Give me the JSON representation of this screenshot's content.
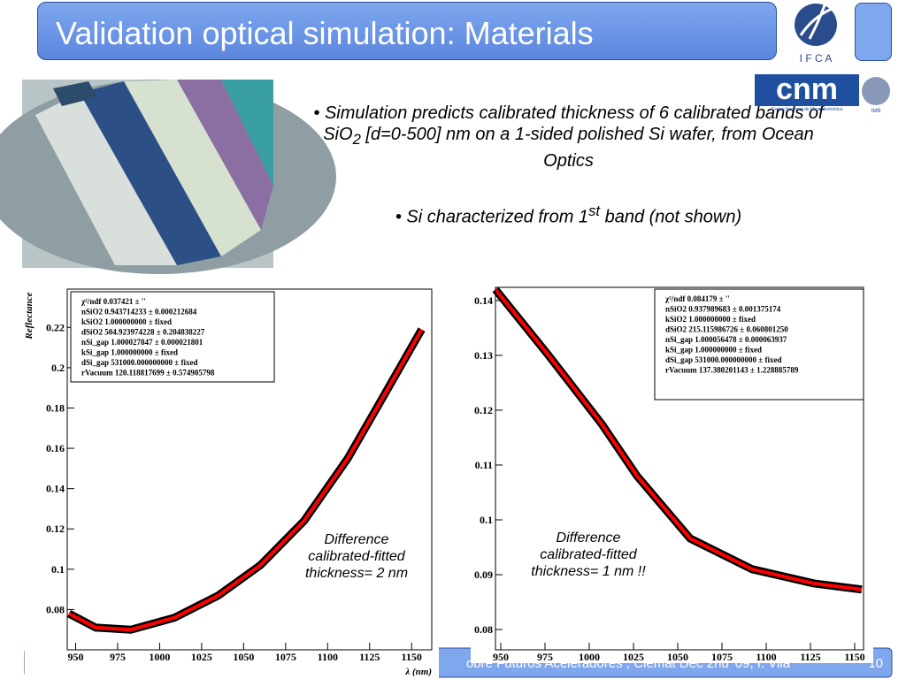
{
  "header": {
    "title": "Validation optical simulation: Materials",
    "logo_ifca": "I F C A",
    "logo_cnm": "cnm",
    "logo_cnm_sub": "Centro Nacional de Microelectrónica",
    "logo_imb": "IMB"
  },
  "bullets": [
    {
      "parts": [
        "Simulation predicts calibrated thickness of 6 calibrated bands of SiO",
        "2",
        " [d=0-500] nm on a 1-sided polished Si wafer, from Ocean Optics"
      ]
    },
    {
      "parts": [
        "Si characterized from 1",
        "st",
        " band (not shown)"
      ]
    }
  ],
  "footer": {
    "text": "obre Futuros Aceleradores , Ciemat Dec 2nd '09, I. Vila",
    "page": "10"
  },
  "chart_data": [
    {
      "type": "line",
      "ylabel": "Reflectance",
      "xlabel": "λ (nm)",
      "x": [
        946,
        962,
        983,
        1009,
        1035,
        1060,
        1086,
        1112,
        1132,
        1156
      ],
      "series": [
        {
          "color": "#ff0000",
          "band_color": "#000000",
          "values": [
            0.078,
            0.071,
            0.07,
            0.076,
            0.087,
            0.102,
            0.124,
            0.155,
            0.184,
            0.219
          ]
        }
      ],
      "xlim": [
        945,
        1162
      ],
      "ylim": [
        0.06,
        0.239
      ],
      "xticks": [
        950,
        975,
        1000,
        1025,
        1050,
        1075,
        1100,
        1125,
        1150
      ],
      "yticks": [
        0.08,
        0.1,
        0.12,
        0.14,
        0.16,
        0.18,
        0.2,
        0.22
      ],
      "stats": [
        "χ²/ndf   0.037421 ± ''",
        "nSiO2   0.943714233 ± 0.000212684",
        "kSiO2   1.000000000 ± fixed",
        "dSiO2   504.923974228 ± 0.204838227",
        "nSi_gap   1.000027847 ± 0.000021801",
        "kSi_gap   1.000000000 ± fixed",
        "dSi_gap   531000.000000000 ± fixed",
        "rVacuum   120.118817699 ± 0.574905798"
      ],
      "annotation": [
        "Difference",
        "calibrated-fitted",
        "thickness= 2 nm"
      ]
    },
    {
      "type": "line",
      "x": [
        947,
        977,
        1007,
        1027,
        1057,
        1092,
        1127,
        1154
      ],
      "series": [
        {
          "color": "#ff0000",
          "band_color": "#000000",
          "values": [
            0.142,
            0.13,
            0.1175,
            0.108,
            0.0966,
            0.091,
            0.0884,
            0.0873
          ]
        }
      ],
      "xlim": [
        947,
        1155
      ],
      "ylim": [
        0.0763,
        0.1424
      ],
      "xticks": [
        950,
        975,
        1000,
        1025,
        1050,
        1075,
        1100,
        1125,
        1150
      ],
      "yticks": [
        0.08,
        0.09,
        0.1,
        0.11,
        0.12,
        0.13,
        0.14
      ],
      "stats": [
        "χ²/ndf   0.084179 ± ''",
        "nSiO2   0.937989683 ± 0.001375174",
        "kSiO2   1.000000000 ± fixed",
        "dSiO2   215.115986726 ± 0.060801250",
        "nSi_gap   1.000056478 ± 0.000063937",
        "kSi_gap   1.000000000 ± fixed",
        "dSi_gap   531000.000000000 ± fixed",
        "rVacuum   137.380201143 ± 1.228885789"
      ],
      "annotation": [
        "Difference",
        "calibrated-fitted",
        "thickness= 1 nm !!"
      ]
    }
  ]
}
